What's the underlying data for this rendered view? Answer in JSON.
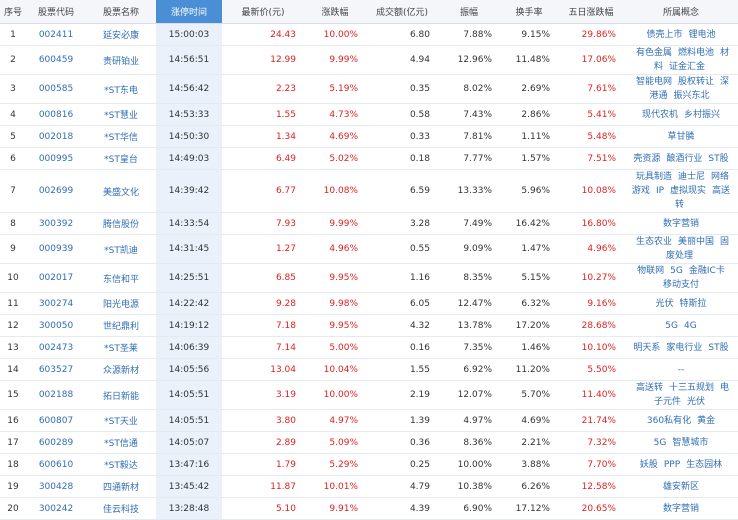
{
  "headers": [
    "序号",
    "股票代码",
    "股票名称",
    "涨停时间",
    "最新价(元)",
    "涨跌幅",
    "成交额(亿元)",
    "振幅",
    "换手率",
    "五日涨跌幅",
    "所属概念"
  ],
  "rows": [
    {
      "no": "1",
      "code": "002411",
      "name": "延安必康",
      "time": "15:00:03",
      "price": "24.43",
      "chg": "10.00%",
      "amount": "6.80",
      "amp": "7.88%",
      "turn": "9.15%",
      "five": "29.86%",
      "concepts": [
        "债壳上市",
        "锂电池"
      ]
    },
    {
      "no": "2",
      "code": "600459",
      "name": "贵研铂业",
      "time": "14:56:51",
      "price": "12.99",
      "chg": "9.99%",
      "amount": "4.94",
      "amp": "12.96%",
      "turn": "11.48%",
      "five": "17.06%",
      "concepts": [
        "有色金属",
        "燃料电池",
        "材料",
        "证金汇金"
      ]
    },
    {
      "no": "3",
      "code": "000585",
      "name": "*ST东电",
      "time": "14:56:42",
      "price": "2.23",
      "chg": "5.19%",
      "amount": "0.35",
      "amp": "8.02%",
      "turn": "2.69%",
      "five": "7.61%",
      "concepts": [
        "智能电网",
        "股权转让",
        "深港通",
        "振兴东北"
      ]
    },
    {
      "no": "4",
      "code": "000816",
      "name": "*ST慧业",
      "time": "14:53:33",
      "price": "1.55",
      "chg": "4.73%",
      "amount": "0.58",
      "amp": "7.43%",
      "turn": "2.86%",
      "five": "5.41%",
      "concepts": [
        "现代农机",
        "乡村振兴"
      ]
    },
    {
      "no": "5",
      "code": "002018",
      "name": "*ST华信",
      "time": "14:50:30",
      "price": "1.34",
      "chg": "4.69%",
      "amount": "0.33",
      "amp": "7.81%",
      "turn": "1.11%",
      "five": "5.48%",
      "concepts": [
        "草甘膦"
      ]
    },
    {
      "no": "6",
      "code": "000995",
      "name": "*ST皇台",
      "time": "14:49:03",
      "price": "6.49",
      "chg": "5.02%",
      "amount": "0.18",
      "amp": "7.77%",
      "turn": "1.57%",
      "five": "7.51%",
      "concepts": [
        "壳资源",
        "酿酒行业",
        "ST股"
      ]
    },
    {
      "no": "7",
      "code": "002699",
      "name": "美盛文化",
      "time": "14:39:42",
      "price": "6.77",
      "chg": "10.08%",
      "amount": "6.59",
      "amp": "13.33%",
      "turn": "5.96%",
      "five": "10.08%",
      "concepts": [
        "玩具制造",
        "迪士尼",
        "网络游戏",
        "IP",
        "虚拟现实",
        "高送转"
      ]
    },
    {
      "no": "8",
      "code": "300392",
      "name": "腾信股份",
      "time": "14:33:54",
      "price": "7.93",
      "chg": "9.99%",
      "amount": "3.28",
      "amp": "7.49%",
      "turn": "16.42%",
      "five": "16.80%",
      "concepts": [
        "数字营销"
      ]
    },
    {
      "no": "9",
      "code": "000939",
      "name": "*ST凯迪",
      "time": "14:31:45",
      "price": "1.27",
      "chg": "4.96%",
      "amount": "0.55",
      "amp": "9.09%",
      "turn": "1.47%",
      "five": "4.96%",
      "concepts": [
        "生态农业",
        "美丽中国",
        "固废处理"
      ]
    },
    {
      "no": "10",
      "code": "002017",
      "name": "东信和平",
      "time": "14:25:51",
      "price": "6.85",
      "chg": "9.95%",
      "amount": "1.16",
      "amp": "8.35%",
      "turn": "5.15%",
      "five": "10.27%",
      "concepts": [
        "物联网",
        "5G",
        "金融IC卡",
        "移动支付"
      ]
    },
    {
      "no": "11",
      "code": "300274",
      "name": "阳光电源",
      "time": "14:22:42",
      "price": "9.28",
      "chg": "9.98%",
      "amount": "6.05",
      "amp": "12.47%",
      "turn": "6.32%",
      "five": "9.16%",
      "concepts": [
        "光伏",
        "特斯拉"
      ]
    },
    {
      "no": "12",
      "code": "300050",
      "name": "世纪鼎利",
      "time": "14:19:12",
      "price": "7.18",
      "chg": "9.95%",
      "amount": "4.32",
      "amp": "13.78%",
      "turn": "17.20%",
      "five": "28.68%",
      "concepts": [
        "5G",
        "4G"
      ]
    },
    {
      "no": "13",
      "code": "002473",
      "name": "*ST圣莱",
      "time": "14:06:39",
      "price": "7.14",
      "chg": "5.00%",
      "amount": "0.16",
      "amp": "7.35%",
      "turn": "1.46%",
      "five": "10.10%",
      "concepts": [
        "明天系",
        "家电行业",
        "ST股"
      ]
    },
    {
      "no": "14",
      "code": "603527",
      "name": "众源新材",
      "time": "14:05:56",
      "price": "13.04",
      "chg": "10.04%",
      "amount": "1.55",
      "amp": "6.92%",
      "turn": "11.20%",
      "five": "5.50%",
      "concepts": [
        "--"
      ]
    },
    {
      "no": "15",
      "code": "002188",
      "name": "拓日新能",
      "time": "14:05:51",
      "price": "3.19",
      "chg": "10.00%",
      "amount": "2.19",
      "amp": "12.07%",
      "turn": "5.70%",
      "five": "11.40%",
      "concepts": [
        "高送转",
        "十三五规划",
        "电子元件",
        "光伏"
      ]
    },
    {
      "no": "16",
      "code": "600807",
      "name": "*ST天业",
      "time": "14:05:51",
      "price": "3.80",
      "chg": "4.97%",
      "amount": "1.39",
      "amp": "4.97%",
      "turn": "4.69%",
      "five": "21.74%",
      "concepts": [
        "360私有化",
        "黄金"
      ]
    },
    {
      "no": "17",
      "code": "600289",
      "name": "*ST信通",
      "time": "14:05:07",
      "price": "2.89",
      "chg": "5.09%",
      "amount": "0.36",
      "amp": "8.36%",
      "turn": "2.21%",
      "five": "7.32%",
      "concepts": [
        "5G",
        "智慧城市"
      ]
    },
    {
      "no": "18",
      "code": "600610",
      "name": "*ST毅达",
      "time": "13:47:16",
      "price": "1.79",
      "chg": "5.29%",
      "amount": "0.25",
      "amp": "10.00%",
      "turn": "3.88%",
      "five": "7.70%",
      "concepts": [
        "妖股",
        "PPP",
        "生态园林"
      ]
    },
    {
      "no": "19",
      "code": "300428",
      "name": "四通新材",
      "time": "13:45:42",
      "price": "11.87",
      "chg": "10.01%",
      "amount": "4.79",
      "amp": "10.38%",
      "turn": "6.26%",
      "five": "12.58%",
      "concepts": [
        "雄安新区"
      ]
    },
    {
      "no": "20",
      "code": "300242",
      "name": "佳云科技",
      "time": "13:28:48",
      "price": "5.10",
      "chg": "9.91%",
      "amount": "4.39",
      "amp": "6.90%",
      "turn": "17.12%",
      "five": "20.65%",
      "concepts": [
        "数字营销"
      ]
    }
  ]
}
